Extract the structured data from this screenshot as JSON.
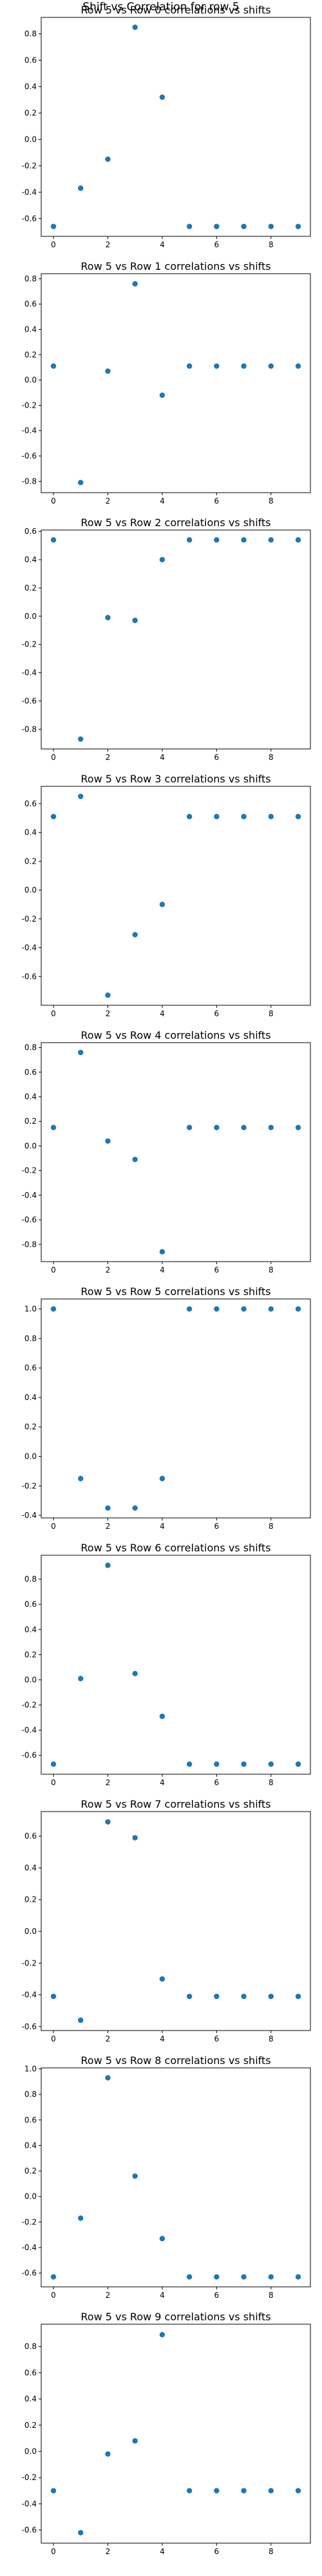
{
  "figure": {
    "suptitle": "Shift vs Correlation for row 5"
  },
  "colors": {
    "marker": "#1f77b4"
  },
  "chart_data": [
    {
      "type": "scatter",
      "title": "Row 5 vs Row 0 correlations vs shifts",
      "x": [
        0,
        1,
        2,
        3,
        4,
        5,
        6,
        7,
        8,
        9
      ],
      "y": [
        -0.66,
        -0.37,
        -0.15,
        0.85,
        0.32,
        -0.66,
        -0.66,
        -0.66,
        -0.66,
        -0.66
      ],
      "xlim": [
        -0.45,
        9.45
      ],
      "ylim": [
        -0.735,
        0.925
      ],
      "xticks": [
        0,
        2,
        4,
        6,
        8
      ],
      "yticks": [
        -0.6,
        -0.4,
        -0.2,
        0.0,
        0.2,
        0.4,
        0.6,
        0.8
      ],
      "ytick_labels": [
        "-0.6",
        "-0.4",
        "-0.2",
        "0.0",
        "0.2",
        "0.4",
        "0.6",
        "0.8"
      ],
      "grid": false
    },
    {
      "type": "scatter",
      "title": "Row 5 vs Row 1 correlations vs shifts",
      "x": [
        0,
        1,
        2,
        3,
        4,
        5,
        6,
        7,
        8,
        9
      ],
      "y": [
        0.11,
        -0.81,
        0.07,
        0.76,
        -0.12,
        0.11,
        0.11,
        0.11,
        0.11,
        0.11
      ],
      "xlim": [
        -0.45,
        9.45
      ],
      "ylim": [
        -0.89,
        0.84
      ],
      "xticks": [
        0,
        2,
        4,
        6,
        8
      ],
      "yticks": [
        -0.8,
        -0.6,
        -0.4,
        -0.2,
        0.0,
        0.2,
        0.4,
        0.6,
        0.8
      ],
      "ytick_labels": [
        "-0.8",
        "-0.6",
        "-0.4",
        "-0.2",
        "0.0",
        "0.2",
        "0.4",
        "0.6",
        "0.8"
      ],
      "grid": false
    },
    {
      "type": "scatter",
      "title": "Row 5 vs Row 2 correlations vs shifts",
      "x": [
        0,
        1,
        2,
        3,
        4,
        5,
        6,
        7,
        8,
        9
      ],
      "y": [
        0.54,
        -0.87,
        -0.01,
        -0.03,
        0.4,
        0.54,
        0.54,
        0.54,
        0.54,
        0.54
      ],
      "xlim": [
        -0.45,
        9.45
      ],
      "ylim": [
        -0.94,
        0.61
      ],
      "xticks": [
        0,
        2,
        4,
        6,
        8
      ],
      "yticks": [
        -0.8,
        -0.6,
        -0.4,
        -0.2,
        0.0,
        0.2,
        0.4,
        0.6
      ],
      "ytick_labels": [
        "-0.8",
        "-0.6",
        "-0.4",
        "-0.2",
        "0.0",
        "0.2",
        "0.4",
        "0.6"
      ],
      "grid": false
    },
    {
      "type": "scatter",
      "title": "Row 5 vs Row 3 correlations vs shifts",
      "x": [
        0,
        1,
        2,
        3,
        4,
        5,
        6,
        7,
        8,
        9
      ],
      "y": [
        0.51,
        0.65,
        -0.73,
        -0.31,
        -0.1,
        0.51,
        0.51,
        0.51,
        0.51,
        0.51
      ],
      "xlim": [
        -0.45,
        9.45
      ],
      "ylim": [
        -0.8,
        0.72
      ],
      "xticks": [
        0,
        2,
        4,
        6,
        8
      ],
      "yticks": [
        -0.6,
        -0.4,
        -0.2,
        0.0,
        0.2,
        0.4,
        0.6
      ],
      "ytick_labels": [
        "-0.6",
        "-0.4",
        "-0.2",
        "0.0",
        "0.2",
        "0.4",
        "0.6"
      ],
      "grid": false
    },
    {
      "type": "scatter",
      "title": "Row 5 vs Row 4 correlations vs shifts",
      "x": [
        0,
        1,
        2,
        3,
        4,
        5,
        6,
        7,
        8,
        9
      ],
      "y": [
        0.15,
        0.76,
        0.04,
        -0.11,
        -0.86,
        0.15,
        0.15,
        0.15,
        0.15,
        0.15
      ],
      "xlim": [
        -0.45,
        9.45
      ],
      "ylim": [
        -0.94,
        0.84
      ],
      "xticks": [
        0,
        2,
        4,
        6,
        8
      ],
      "yticks": [
        -0.8,
        -0.6,
        -0.4,
        -0.2,
        0.0,
        0.2,
        0.4,
        0.6,
        0.8
      ],
      "ytick_labels": [
        "-0.8",
        "-0.6",
        "-0.4",
        "-0.2",
        "0.0",
        "0.2",
        "0.4",
        "0.6",
        "0.8"
      ],
      "grid": false
    },
    {
      "type": "scatter",
      "title": "Row 5 vs Row 5 correlations vs shifts",
      "x": [
        0,
        1,
        2,
        3,
        4,
        5,
        6,
        7,
        8,
        9
      ],
      "y": [
        1.0,
        -0.15,
        -0.35,
        -0.35,
        -0.15,
        1.0,
        1.0,
        1.0,
        1.0,
        1.0
      ],
      "xlim": [
        -0.45,
        9.45
      ],
      "ylim": [
        -0.417,
        1.068
      ],
      "xticks": [
        0,
        2,
        4,
        6,
        8
      ],
      "yticks": [
        -0.4,
        -0.2,
        0.0,
        0.2,
        0.4,
        0.6,
        0.8,
        1.0
      ],
      "ytick_labels": [
        "-0.4",
        "-0.2",
        "0.0",
        "0.2",
        "0.4",
        "0.6",
        "0.8",
        "1.0"
      ],
      "grid": false
    },
    {
      "type": "scatter",
      "title": "Row 5 vs Row 6 correlations vs shifts",
      "x": [
        0,
        1,
        2,
        3,
        4,
        5,
        6,
        7,
        8,
        9
      ],
      "y": [
        -0.67,
        0.01,
        0.91,
        0.05,
        -0.29,
        -0.67,
        -0.67,
        -0.67,
        -0.67,
        -0.67
      ],
      "xlim": [
        -0.45,
        9.45
      ],
      "ylim": [
        -0.75,
        0.99
      ],
      "xticks": [
        0,
        2,
        4,
        6,
        8
      ],
      "yticks": [
        -0.6,
        -0.4,
        -0.2,
        0.0,
        0.2,
        0.4,
        0.6,
        0.8
      ],
      "ytick_labels": [
        "-0.6",
        "-0.4",
        "-0.2",
        "0.0",
        "0.2",
        "0.4",
        "0.6",
        "0.8"
      ],
      "grid": false
    },
    {
      "type": "scatter",
      "title": "Row 5 vs Row 7 correlations vs shifts",
      "x": [
        0,
        1,
        2,
        3,
        4,
        5,
        6,
        7,
        8,
        9
      ],
      "y": [
        -0.41,
        -0.56,
        0.69,
        0.59,
        -0.3,
        -0.41,
        -0.41,
        -0.41,
        -0.41,
        -0.41
      ],
      "xlim": [
        -0.45,
        9.45
      ],
      "ylim": [
        -0.625,
        0.755
      ],
      "xticks": [
        0,
        2,
        4,
        6,
        8
      ],
      "yticks": [
        -0.6,
        -0.4,
        -0.2,
        0.0,
        0.2,
        0.4,
        0.6
      ],
      "ytick_labels": [
        "-0.6",
        "-0.4",
        "-0.2",
        "0.0",
        "0.2",
        "0.4",
        "0.6"
      ],
      "grid": false
    },
    {
      "type": "scatter",
      "title": "Row 5 vs Row 8 correlations vs shifts",
      "x": [
        0,
        1,
        2,
        3,
        4,
        5,
        6,
        7,
        8,
        9
      ],
      "y": [
        -0.63,
        -0.17,
        0.93,
        0.16,
        -0.33,
        -0.63,
        -0.63,
        -0.63,
        -0.63,
        -0.63
      ],
      "xlim": [
        -0.45,
        9.45
      ],
      "ylim": [
        -0.708,
        1.008
      ],
      "xticks": [
        0,
        2,
        4,
        6,
        8
      ],
      "yticks": [
        -0.6,
        -0.4,
        -0.2,
        0.0,
        0.2,
        0.4,
        0.6,
        0.8,
        1.0
      ],
      "ytick_labels": [
        "-0.6",
        "-0.4",
        "-0.2",
        "0.0",
        "0.2",
        "0.4",
        "0.6",
        "0.8",
        "1.0"
      ],
      "grid": false
    },
    {
      "type": "scatter",
      "title": "Row 5 vs Row 9 correlations vs shifts",
      "x": [
        0,
        1,
        2,
        3,
        4,
        5,
        6,
        7,
        8,
        9
      ],
      "y": [
        -0.3,
        -0.62,
        -0.02,
        0.08,
        0.89,
        -0.3,
        -0.3,
        -0.3,
        -0.3,
        -0.3
      ],
      "xlim": [
        -0.45,
        9.45
      ],
      "ylim": [
        -0.7,
        0.97
      ],
      "xticks": [
        0,
        2,
        4,
        6,
        8
      ],
      "yticks": [
        -0.6,
        -0.4,
        -0.2,
        0.0,
        0.2,
        0.4,
        0.6,
        0.8
      ],
      "ytick_labels": [
        "-0.6",
        "-0.4",
        "-0.2",
        "0.0",
        "0.2",
        "0.4",
        "0.6",
        "0.8"
      ],
      "grid": false
    }
  ]
}
